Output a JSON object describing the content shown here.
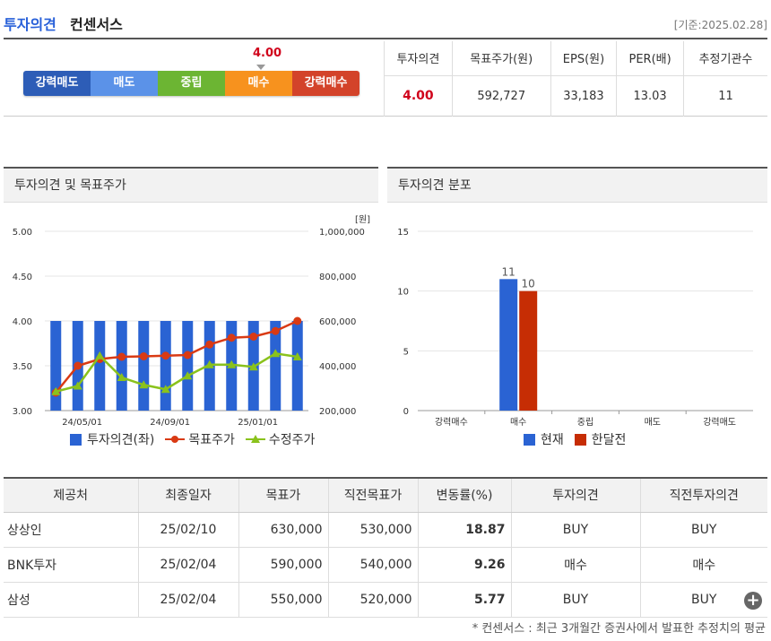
{
  "header": {
    "title_blue": "투자의견",
    "title_dark": "컨센서스",
    "date": "[기준:2025.02.28]"
  },
  "consensus": {
    "scale_value": "4.00",
    "segments": [
      "강력매도",
      "매도",
      "중립",
      "매수",
      "강력매수"
    ],
    "table": {
      "headers": [
        "투자의견",
        "목표주가(원)",
        "EPS(원)",
        "PER(배)",
        "추정기관수"
      ],
      "values": [
        "4.00",
        "592,727",
        "33,183",
        "13.03",
        "11"
      ]
    }
  },
  "panel_left": {
    "title": "투자의견 및 목표주가"
  },
  "panel_right": {
    "title": "투자의견 분포"
  },
  "colors": {
    "blue": "#2a63d3",
    "red": "#d93a14",
    "green": "#8ac21c",
    "orange_red": "#c62d04"
  },
  "chart_data": [
    {
      "type": "bar+line",
      "y_left": {
        "min": 3.0,
        "max": 5.0,
        "ticks": [
          "3.00",
          "3.50",
          "4.00",
          "4.50",
          "5.00"
        ]
      },
      "y_right": {
        "min": 200000,
        "max": 1000000,
        "ticks": [
          "200,000",
          "400,000",
          "600,000",
          "800,000",
          "1,000,000"
        ],
        "unit": "[원]"
      },
      "x_ticks": [
        "24/05/01",
        "24/09/01",
        "25/01/01"
      ],
      "series": [
        {
          "name": "투자의견(좌)",
          "kind": "bar",
          "values": [
            4.0,
            4.0,
            4.0,
            4.0,
            4.0,
            4.0,
            4.0,
            4.0,
            4.0,
            4.0,
            4.0,
            4.0
          ]
        },
        {
          "name": "목표주가",
          "kind": "line",
          "values": [
            280000,
            400000,
            430000,
            440000,
            442000,
            445000,
            448000,
            495000,
            525000,
            530000,
            555000,
            600000
          ]
        },
        {
          "name": "수정주가",
          "kind": "line",
          "values": [
            285000,
            310000,
            445000,
            348000,
            315000,
            295000,
            355000,
            405000,
            405000,
            395000,
            455000,
            440000
          ]
        }
      ]
    },
    {
      "type": "bar",
      "y": {
        "min": 0,
        "max": 15,
        "ticks": [
          "0",
          "5",
          "10",
          "15"
        ]
      },
      "categories": [
        "강력매수",
        "매수",
        "중립",
        "매도",
        "강력매도"
      ],
      "series": [
        {
          "name": "현재",
          "values": [
            0,
            11,
            0,
            0,
            0
          ]
        },
        {
          "name": "한달전",
          "values": [
            0,
            10,
            0,
            0,
            0
          ]
        }
      ],
      "labels": [
        "11",
        "10"
      ]
    }
  ],
  "brokers": {
    "headers": [
      "제공처",
      "최종일자",
      "목표가",
      "직전목표가",
      "변동률(%)",
      "투자의견",
      "직전투자의견"
    ],
    "rows": [
      [
        "상상인",
        "25/02/10",
        "630,000",
        "530,000",
        "18.87",
        "BUY",
        "BUY"
      ],
      [
        "BNK투자",
        "25/02/04",
        "590,000",
        "540,000",
        "9.26",
        "매수",
        "매수"
      ],
      [
        "삼성",
        "25/02/04",
        "550,000",
        "520,000",
        "5.77",
        "BUY",
        "BUY"
      ]
    ]
  },
  "footnote": "* 컨센서스 : 최근 3개월간 증권사에서 발표한 추정치의 평균"
}
